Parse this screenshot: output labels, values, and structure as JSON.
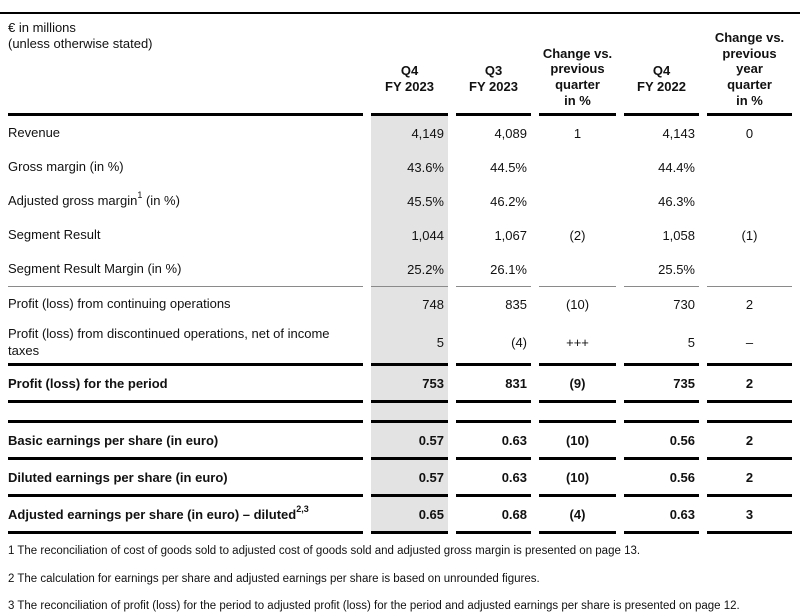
{
  "colors": {
    "highlight_column": "#e3e3e3",
    "rule_thick": "#000000",
    "rule_thin": "#8a8a8a",
    "text": "#111111"
  },
  "table": {
    "unit_label": "€ in millions\n(unless otherwise stated)",
    "columns": [
      {
        "id": "q4-fy2023",
        "label": "Q4\nFY 2023",
        "highlight": true
      },
      {
        "id": "q3-fy2023",
        "label": "Q3\nFY 2023",
        "highlight": false
      },
      {
        "id": "change-vs-previous-quarter",
        "label": "Change vs.\nprevious\nquarter\nin %",
        "highlight": false
      },
      {
        "id": "q4-fy2022",
        "label": "Q4\nFY 2022",
        "highlight": false
      },
      {
        "id": "change-vs-previous-year-quarter",
        "label": "Change vs.\nprevious\nyear\nquarter\nin %",
        "highlight": false
      }
    ],
    "rows": [
      {
        "type": "data",
        "label": "Revenue",
        "values": [
          "4,149",
          "4,089",
          "1",
          "4,143",
          "0"
        ]
      },
      {
        "type": "data",
        "label": "Gross margin (in %)",
        "values": [
          "43.6%",
          "44.5%",
          "",
          "44.4%",
          ""
        ]
      },
      {
        "type": "data",
        "label": "Adjusted gross margin",
        "sup": "1",
        "post": " (in %)",
        "values": [
          "45.5%",
          "46.2%",
          "",
          "46.3%",
          ""
        ]
      },
      {
        "type": "data",
        "label": "Segment Result",
        "values": [
          "1,044",
          "1,067",
          "(2)",
          "1,058",
          "(1)"
        ]
      },
      {
        "type": "data",
        "label": "Segment Result Margin (in %)",
        "rule_bottom": "thin",
        "values": [
          "25.2%",
          "26.1%",
          "",
          "25.5%",
          ""
        ]
      },
      {
        "type": "data",
        "label": "Profit (loss) from continuing operations",
        "values": [
          "748",
          "835",
          "(10)",
          "730",
          "2"
        ]
      },
      {
        "type": "data",
        "label": "Profit (loss) from discontinued operations, net of income taxes",
        "values": [
          "5",
          "(4)",
          "+++",
          "5",
          "–"
        ]
      },
      {
        "type": "data",
        "label": "Profit (loss) for the period",
        "bold": true,
        "rule_top": "thick",
        "rule_bottom": "thick",
        "values": [
          "753",
          "831",
          "(9)",
          "735",
          "2"
        ]
      },
      {
        "type": "spacer",
        "values": []
      },
      {
        "type": "data",
        "label": "Basic earnings per share (in euro)",
        "bold": true,
        "rule_top": "thick",
        "values": [
          "0.57",
          "0.63",
          "(10)",
          "0.56",
          "2"
        ]
      },
      {
        "type": "data",
        "label": "Diluted earnings per share (in euro)",
        "bold": true,
        "rule_top": "thick",
        "values": [
          "0.57",
          "0.63",
          "(10)",
          "0.56",
          "2"
        ]
      },
      {
        "type": "data",
        "label": "Adjusted earnings per share (in euro) – diluted",
        "sup": "2,3",
        "post": "",
        "bold": true,
        "rule_top": "thick",
        "rule_bottom": "thick",
        "values": [
          "0.65",
          "0.68",
          "(4)",
          "0.63",
          "3"
        ]
      }
    ]
  },
  "footnotes": [
    "1 The reconciliation of cost of goods sold to adjusted cost of goods sold and adjusted gross margin is presented on page 13.",
    "2 The calculation for earnings per share and adjusted earnings per share is based on unrounded figures.",
    "3 The reconciliation of profit (loss) for the period to adjusted profit (loss) for the period and adjusted earnings per share is presented on page 12."
  ]
}
